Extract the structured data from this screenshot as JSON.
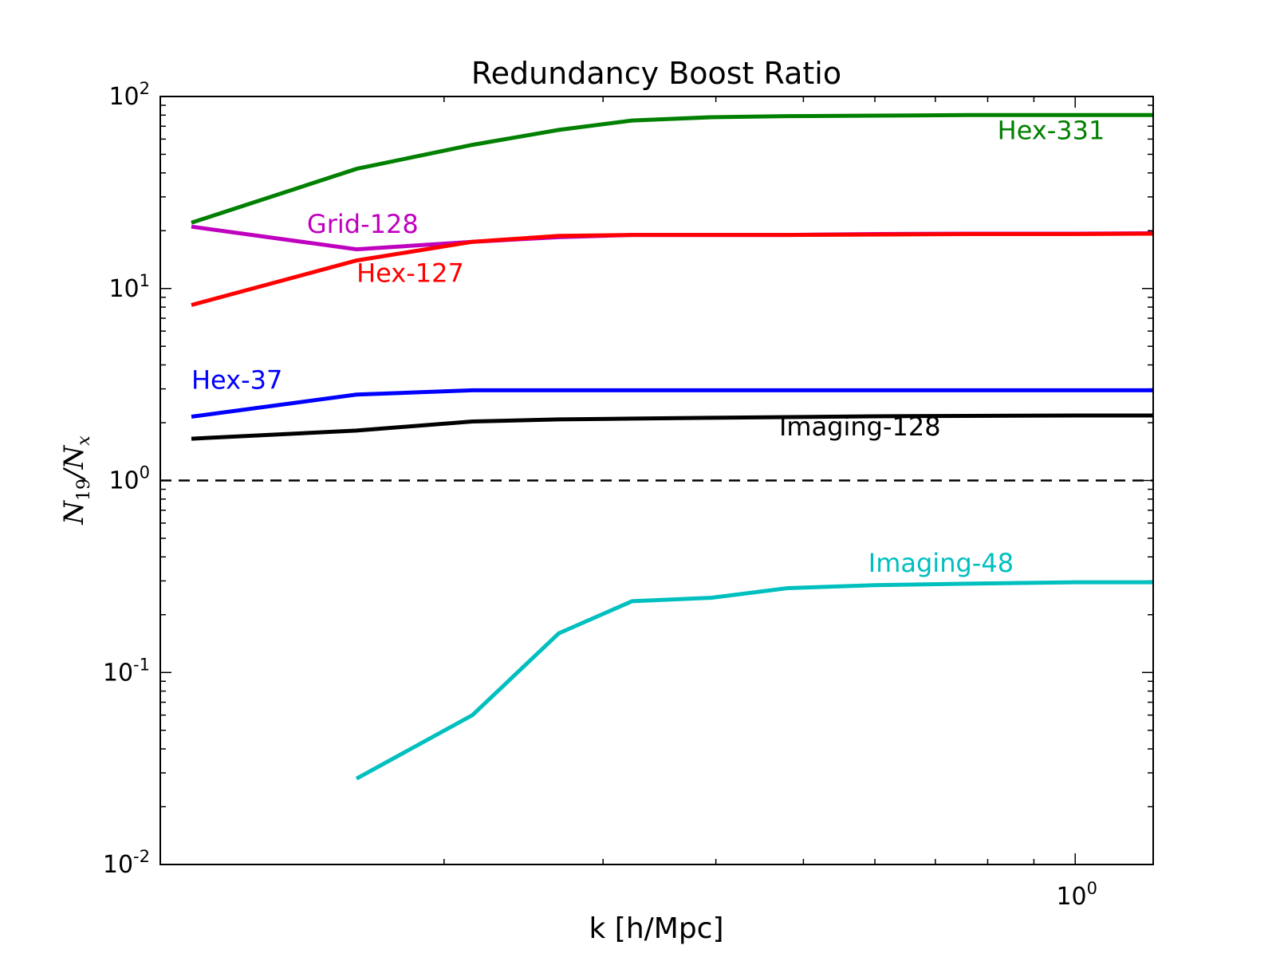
{
  "chart_data": {
    "type": "line",
    "title": "Redundancy Boost Ratio",
    "xlabel": "k [h/Mpc]",
    "ylabel": "N19/Nx",
    "xscale": "log",
    "yscale": "log",
    "xlim": [
      0.097,
      1.22
    ],
    "ylim": [
      0.01,
      100
    ],
    "x_tick_labels": [
      {
        "value": 1.0,
        "label": "10",
        "exp": "0"
      }
    ],
    "y_tick_labels": [
      {
        "value": 100,
        "label": "10",
        "exp": "2"
      },
      {
        "value": 10,
        "label": "10",
        "exp": "1"
      },
      {
        "value": 1,
        "label": "10",
        "exp": "0"
      },
      {
        "value": 0.1,
        "label": "10",
        "exp": "-1"
      },
      {
        "value": 0.01,
        "label": "10",
        "exp": "-2"
      }
    ],
    "grid": false,
    "reference_line": {
      "y": 1.0,
      "style": "dashed",
      "color": "#000000"
    },
    "series": [
      {
        "name": "Hex-331",
        "color": "#008000",
        "label_position": [
          0.82,
          60
        ],
        "x": [
          0.105,
          0.16,
          0.215,
          0.268,
          0.323,
          0.395,
          0.48,
          0.6,
          0.76,
          1.0,
          1.22
        ],
        "y": [
          22,
          42,
          56,
          67,
          75,
          78,
          79,
          79.5,
          80,
          80,
          80
        ]
      },
      {
        "name": "Grid-128",
        "color": "#bf00bf",
        "label_position": [
          0.141,
          19.5
        ],
        "x": [
          0.105,
          0.16,
          0.215,
          0.268,
          0.323,
          0.395,
          0.48,
          0.6,
          0.76,
          1.0,
          1.22
        ],
        "y": [
          21,
          16,
          17.5,
          18.5,
          19,
          19,
          19,
          19.2,
          19.3,
          19.3,
          19.4
        ]
      },
      {
        "name": "Hex-127",
        "color": "#ff0000",
        "label_position": [
          0.16,
          10.8
        ],
        "x": [
          0.105,
          0.16,
          0.215,
          0.268,
          0.323,
          0.395,
          0.48,
          0.6,
          0.76,
          1.0,
          1.22
        ],
        "y": [
          8.2,
          14,
          17.5,
          18.8,
          19,
          19,
          19,
          19.1,
          19.2,
          19.2,
          19.3
        ]
      },
      {
        "name": "Hex-37",
        "color": "#0000ff",
        "label_position": [
          0.105,
          3.0
        ],
        "x": [
          0.105,
          0.16,
          0.215,
          0.268,
          0.323,
          0.395,
          0.48,
          0.6,
          0.76,
          1.0,
          1.22
        ],
        "y": [
          2.15,
          2.8,
          2.95,
          2.95,
          2.95,
          2.95,
          2.95,
          2.95,
          2.95,
          2.95,
          2.95
        ]
      },
      {
        "name": "Imaging-128",
        "color": "#000000",
        "label_position": [
          0.47,
          1.72
        ],
        "x": [
          0.105,
          0.16,
          0.215,
          0.268,
          0.323,
          0.395,
          0.48,
          0.6,
          0.76,
          1.0,
          1.22
        ],
        "y": [
          1.65,
          1.82,
          2.03,
          2.08,
          2.1,
          2.12,
          2.14,
          2.16,
          2.17,
          2.18,
          2.18
        ]
      },
      {
        "name": "Imaging-48",
        "color": "#00bfbf",
        "label_position": [
          0.59,
          0.335
        ],
        "x": [
          0.16,
          0.215,
          0.268,
          0.323,
          0.395,
          0.48,
          0.6,
          0.76,
          1.0,
          1.22
        ],
        "y": [
          0.028,
          0.06,
          0.16,
          0.235,
          0.245,
          0.275,
          0.285,
          0.29,
          0.295,
          0.295
        ]
      }
    ]
  }
}
